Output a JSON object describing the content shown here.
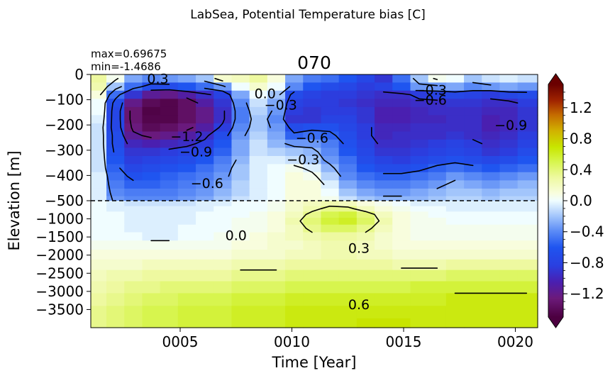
{
  "suptitle": "LabSea, Potential Temperature bias [C]",
  "panel_title": "070",
  "stats": {
    "max_text": "max=0.69675",
    "min_text": "min=-1.4686"
  },
  "chart_data": {
    "type": "heatmap",
    "xlabel": "Time [Year]",
    "ylabel": "Elevation [m]",
    "xlim": [
      1,
      21
    ],
    "x_ticks": [
      5,
      10,
      15,
      20
    ],
    "x_tick_labels": [
      "0005",
      "0010",
      "0015",
      "0020"
    ],
    "y_ticks_upper": [
      0,
      -100,
      -200,
      -300,
      -400,
      -500
    ],
    "y_tick_labels_upper": [
      "0",
      "−100",
      "−200",
      "−300",
      "−400",
      "−500"
    ],
    "y_ticks_lower": [
      -1000,
      -1500,
      -2000,
      -2500,
      -3000,
      -3500
    ],
    "y_tick_labels_lower": [
      "−1000",
      "−1500",
      "−2000",
      "−2500",
      "−3000",
      "−3500"
    ],
    "upper_range_m": [
      0,
      -500
    ],
    "lower_range_m": [
      -500,
      -4000
    ],
    "split_depth_m": -500,
    "colorbar": {
      "vmin": -1.5,
      "vmax": 1.5,
      "ticks": [
        -1.2,
        -0.8,
        -0.4,
        0.0,
        0.4,
        0.8,
        1.2
      ],
      "tick_labels": [
        "−1.2",
        "−0.8",
        "−0.4",
        "0.0",
        "0.4",
        "0.8",
        "1.2"
      ]
    },
    "contour_labels": [
      {
        "text": "0.3",
        "x": 4.0,
        "depth": -15
      },
      {
        "text": "−0.3",
        "x": 16.2,
        "depth": -60
      },
      {
        "text": "−0.6",
        "x": 16.2,
        "depth": -100
      },
      {
        "text": "0.0",
        "x": 8.8,
        "depth": -75
      },
      {
        "text": "−0.3",
        "x": 9.5,
        "depth": -120
      },
      {
        "text": "−1.2",
        "x": 5.3,
        "depth": -245
      },
      {
        "text": "−0.9",
        "x": 5.7,
        "depth": -305
      },
      {
        "text": "−0.6",
        "x": 6.2,
        "depth": -430
      },
      {
        "text": "−0.6",
        "x": 10.9,
        "depth": -250
      },
      {
        "text": "−0.3",
        "x": 10.5,
        "depth": -335
      },
      {
        "text": "−0.9",
        "x": 19.8,
        "depth": -200
      },
      {
        "text": "0.0",
        "x": 7.5,
        "depth": -1450
      },
      {
        "text": "0.3",
        "x": 13.0,
        "depth": -1800
      },
      {
        "text": "0.6",
        "x": 13.0,
        "depth": -3350
      }
    ],
    "grid_columns_years": [
      1.3,
      2.1,
      2.9,
      3.7,
      4.5,
      5.3,
      6.1,
      6.9,
      7.7,
      8.5,
      9.3,
      10.1,
      10.9,
      11.7,
      12.5,
      13.3,
      14.1,
      14.9,
      15.7,
      16.5,
      17.3,
      18.1,
      18.9,
      19.7,
      20.5
    ],
    "grid_upper_depths_m": [
      -16,
      -48,
      -80,
      -113,
      -145,
      -177,
      -210,
      -242,
      -274,
      -307,
      -339,
      -371,
      -403,
      -436,
      -468,
      -496
    ],
    "grid_lower_depths_m": [
      -580,
      -720,
      -880,
      -1060,
      -1260,
      -1480,
      -1720,
      -1980,
      -2260,
      -2560,
      -2880,
      -3220,
      -3580,
      -3910
    ],
    "values_upper": [
      [
        0.3,
        0.05,
        -0.3,
        -0.4,
        -0.35,
        -0.3,
        -0.2,
        0.15,
        0.2,
        0.3,
        0.1,
        -0.3,
        -0.45,
        -0.5,
        -0.6,
        -0.75,
        -0.9,
        -0.5,
        -0.2,
        0.05,
        0.0,
        -0.2,
        -0.1,
        -0.05,
        -0.1
      ],
      [
        0.25,
        -0.2,
        -0.5,
        -0.7,
        -0.7,
        -0.6,
        -0.5,
        -0.35,
        0.0,
        0.15,
        0.0,
        -0.4,
        -0.6,
        -0.7,
        -0.75,
        -0.85,
        -0.8,
        -0.6,
        -0.35,
        -0.35,
        -0.3,
        -0.4,
        -0.35,
        -0.3,
        -0.35
      ],
      [
        0.1,
        -0.5,
        -0.9,
        -1.15,
        -1.2,
        -1.1,
        -0.95,
        -0.8,
        -0.3,
        0.0,
        -0.2,
        -0.7,
        -0.8,
        -0.85,
        -0.85,
        -0.9,
        -0.95,
        -0.95,
        -0.85,
        -0.8,
        -0.75,
        -0.8,
        -0.85,
        -0.75,
        -0.7
      ],
      [
        0.0,
        -0.7,
        -1.2,
        -1.4,
        -1.45,
        -1.35,
        -1.1,
        -0.9,
        -0.4,
        -0.1,
        -0.3,
        -0.8,
        -0.85,
        -0.85,
        -0.9,
        -0.95,
        -1.0,
        -1.0,
        -0.95,
        -0.95,
        -0.9,
        -0.9,
        -0.95,
        -0.95,
        -0.85
      ],
      [
        0.0,
        -0.75,
        -1.3,
        -1.47,
        -1.45,
        -1.35,
        -1.2,
        -0.95,
        -0.45,
        -0.15,
        -0.35,
        -0.85,
        -0.9,
        -0.85,
        -0.85,
        -0.9,
        -1.05,
        -1.05,
        -1.0,
        -0.95,
        -0.95,
        -0.95,
        -1.0,
        -1.0,
        -0.9
      ],
      [
        -0.05,
        -0.75,
        -1.3,
        -1.45,
        -1.45,
        -1.35,
        -1.2,
        -0.95,
        -0.45,
        -0.2,
        -0.4,
        -0.9,
        -0.9,
        -0.8,
        -0.8,
        -0.9,
        -1.05,
        -1.05,
        -1.0,
        -1.0,
        -0.95,
        -0.95,
        -1.05,
        -1.0,
        -0.9
      ],
      [
        -0.1,
        -0.75,
        -1.25,
        -1.4,
        -1.35,
        -1.25,
        -1.1,
        -0.85,
        -0.4,
        -0.2,
        -0.35,
        -0.7,
        -0.65,
        -0.65,
        -0.75,
        -0.85,
        -1.0,
        -1.0,
        -0.95,
        -0.95,
        -0.95,
        -0.95,
        -1.05,
        -1.0,
        -0.9
      ],
      [
        -0.1,
        -0.7,
        -1.15,
        -1.25,
        -1.2,
        -1.1,
        -0.95,
        -0.7,
        -0.35,
        -0.15,
        -0.3,
        -0.55,
        -0.5,
        -0.55,
        -0.7,
        -0.85,
        -1.0,
        -0.95,
        -0.95,
        -0.95,
        -0.9,
        -0.95,
        -1.0,
        -0.95,
        -0.85
      ],
      [
        -0.1,
        -0.7,
        -1.0,
        -1.05,
        -1.0,
        -0.95,
        -0.85,
        -0.6,
        -0.3,
        -0.1,
        -0.25,
        -0.35,
        -0.35,
        -0.45,
        -0.65,
        -0.8,
        -0.95,
        -0.95,
        -0.9,
        -0.85,
        -0.8,
        -0.85,
        -0.95,
        -0.9,
        -0.8
      ],
      [
        -0.1,
        -0.65,
        -0.9,
        -0.9,
        -0.85,
        -0.8,
        -0.75,
        -0.55,
        -0.3,
        -0.1,
        -0.15,
        -0.2,
        -0.25,
        -0.4,
        -0.6,
        -0.75,
        -0.9,
        -0.9,
        -0.85,
        -0.8,
        -0.75,
        -0.8,
        -0.9,
        -0.85,
        -0.7
      ],
      [
        -0.1,
        -0.6,
        -0.85,
        -0.8,
        -0.75,
        -0.7,
        -0.6,
        -0.45,
        -0.25,
        -0.05,
        -0.05,
        -0.1,
        -0.2,
        -0.35,
        -0.5,
        -0.7,
        -0.8,
        -0.85,
        -0.75,
        -0.7,
        -0.65,
        -0.7,
        -0.75,
        -0.7,
        -0.6
      ],
      [
        -0.1,
        -0.55,
        -0.75,
        -0.7,
        -0.65,
        -0.6,
        -0.5,
        -0.4,
        -0.2,
        -0.05,
        0.0,
        0.05,
        -0.05,
        -0.25,
        -0.45,
        -0.6,
        -0.7,
        -0.7,
        -0.65,
        -0.55,
        -0.5,
        -0.55,
        -0.6,
        -0.55,
        -0.5
      ],
      [
        -0.05,
        -0.5,
        -0.65,
        -0.6,
        -0.55,
        -0.5,
        -0.45,
        -0.35,
        -0.2,
        -0.05,
        0.0,
        0.1,
        0.05,
        -0.15,
        -0.4,
        -0.5,
        -0.55,
        -0.55,
        -0.5,
        -0.45,
        -0.35,
        -0.4,
        -0.45,
        -0.4,
        -0.35
      ],
      [
        -0.05,
        -0.45,
        -0.55,
        -0.55,
        -0.5,
        -0.45,
        -0.4,
        -0.3,
        -0.15,
        -0.05,
        0.0,
        0.1,
        0.1,
        -0.05,
        -0.3,
        -0.4,
        -0.45,
        -0.45,
        -0.4,
        -0.35,
        -0.25,
        -0.3,
        -0.35,
        -0.3,
        -0.25
      ],
      [
        -0.05,
        -0.4,
        -0.45,
        -0.45,
        -0.45,
        -0.4,
        -0.35,
        -0.25,
        -0.15,
        -0.05,
        0.0,
        0.1,
        0.1,
        0.0,
        -0.2,
        -0.3,
        -0.35,
        -0.35,
        -0.3,
        -0.25,
        -0.2,
        -0.2,
        -0.25,
        -0.2,
        -0.2
      ],
      [
        -0.05,
        -0.35,
        -0.4,
        -0.4,
        -0.4,
        -0.35,
        -0.3,
        -0.2,
        -0.1,
        -0.05,
        0.0,
        0.1,
        0.1,
        0.05,
        -0.1,
        -0.2,
        -0.25,
        -0.25,
        -0.25,
        -0.2,
        -0.15,
        -0.15,
        -0.2,
        -0.15,
        -0.15
      ]
    ],
    "values_lower": [
      [
        0.0,
        -0.05,
        -0.1,
        -0.1,
        -0.1,
        -0.1,
        -0.05,
        -0.05,
        0.0,
        0.0,
        0.05,
        0.15,
        0.2,
        0.25,
        0.2,
        0.1,
        0.05,
        0.0,
        -0.05,
        -0.05,
        -0.05,
        -0.05,
        -0.05,
        -0.05,
        -0.05
      ],
      [
        0.0,
        -0.05,
        -0.05,
        -0.05,
        -0.05,
        -0.05,
        -0.05,
        0.0,
        0.0,
        0.0,
        0.05,
        0.15,
        0.25,
        0.35,
        0.35,
        0.2,
        0.1,
        0.05,
        0.0,
        0.0,
        -0.05,
        -0.05,
        -0.05,
        -0.05,
        -0.05
      ],
      [
        0.0,
        0.0,
        -0.05,
        -0.05,
        -0.05,
        -0.05,
        0.0,
        0.0,
        0.0,
        0.05,
        0.1,
        0.2,
        0.35,
        0.5,
        0.55,
        0.4,
        0.2,
        0.1,
        0.05,
        0.0,
        0.0,
        0.0,
        0.0,
        0.0,
        0.0
      ],
      [
        0.0,
        0.0,
        -0.05,
        -0.05,
        -0.05,
        -0.05,
        0.0,
        0.0,
        0.05,
        0.05,
        0.1,
        0.25,
        0.4,
        0.55,
        0.6,
        0.45,
        0.25,
        0.1,
        0.05,
        0.05,
        0.0,
        0.0,
        0.0,
        0.0,
        0.0
      ],
      [
        0.0,
        0.0,
        -0.05,
        -0.05,
        -0.05,
        0.0,
        0.0,
        0.0,
        0.05,
        0.05,
        0.1,
        0.2,
        0.35,
        0.45,
        0.45,
        0.35,
        0.2,
        0.1,
        0.05,
        0.05,
        0.05,
        0.05,
        0.05,
        0.05,
        0.05
      ],
      [
        0.0,
        0.0,
        0.0,
        -0.05,
        -0.05,
        0.0,
        0.0,
        0.05,
        0.05,
        0.1,
        0.15,
        0.2,
        0.25,
        0.3,
        0.3,
        0.25,
        0.15,
        0.1,
        0.05,
        0.05,
        0.05,
        0.05,
        0.05,
        0.05,
        0.05
      ],
      [
        0.05,
        0.05,
        0.05,
        0.05,
        0.05,
        0.05,
        0.05,
        0.05,
        0.1,
        0.1,
        0.15,
        0.15,
        0.2,
        0.25,
        0.25,
        0.2,
        0.15,
        0.1,
        0.1,
        0.1,
        0.1,
        0.1,
        0.1,
        0.1,
        0.1
      ],
      [
        0.1,
        0.1,
        0.1,
        0.1,
        0.1,
        0.1,
        0.1,
        0.1,
        0.15,
        0.15,
        0.15,
        0.2,
        0.2,
        0.25,
        0.25,
        0.2,
        0.2,
        0.15,
        0.15,
        0.15,
        0.15,
        0.15,
        0.15,
        0.15,
        0.15
      ],
      [
        0.15,
        0.15,
        0.15,
        0.2,
        0.2,
        0.2,
        0.2,
        0.2,
        0.25,
        0.25,
        0.25,
        0.3,
        0.3,
        0.3,
        0.3,
        0.3,
        0.3,
        0.25,
        0.25,
        0.25,
        0.3,
        0.3,
        0.3,
        0.3,
        0.3
      ],
      [
        0.2,
        0.25,
        0.25,
        0.3,
        0.3,
        0.3,
        0.3,
        0.3,
        0.35,
        0.35,
        0.35,
        0.4,
        0.4,
        0.4,
        0.4,
        0.4,
        0.4,
        0.4,
        0.4,
        0.4,
        0.45,
        0.45,
        0.45,
        0.45,
        0.45
      ],
      [
        0.25,
        0.3,
        0.35,
        0.35,
        0.4,
        0.4,
        0.4,
        0.4,
        0.45,
        0.45,
        0.45,
        0.5,
        0.5,
        0.5,
        0.5,
        0.5,
        0.5,
        0.5,
        0.55,
        0.55,
        0.55,
        0.55,
        0.55,
        0.55,
        0.55
      ],
      [
        0.3,
        0.35,
        0.4,
        0.45,
        0.45,
        0.5,
        0.5,
        0.5,
        0.55,
        0.55,
        0.55,
        0.6,
        0.6,
        0.6,
        0.6,
        0.6,
        0.6,
        0.6,
        0.6,
        0.6,
        0.65,
        0.65,
        0.65,
        0.65,
        0.65
      ],
      [
        0.35,
        0.4,
        0.45,
        0.5,
        0.5,
        0.55,
        0.55,
        0.55,
        0.6,
        0.6,
        0.6,
        0.65,
        0.65,
        0.65,
        0.65,
        0.65,
        0.65,
        0.65,
        0.65,
        0.65,
        0.65,
        0.65,
        0.65,
        0.65,
        0.65
      ],
      [
        0.35,
        0.4,
        0.45,
        0.5,
        0.5,
        0.55,
        0.55,
        0.55,
        0.6,
        0.6,
        0.6,
        0.65,
        0.65,
        0.65,
        0.65,
        0.7,
        0.7,
        0.7,
        0.65,
        0.65,
        0.65,
        0.65,
        0.65,
        0.65,
        0.65
      ]
    ]
  },
  "colors": {
    "line": "#000000",
    "background": "#ffffff",
    "scale": [
      [
        0.0,
        "#4c0040"
      ],
      [
        0.08,
        "#6c1a7a"
      ],
      [
        0.15,
        "#4a1fb0"
      ],
      [
        0.22,
        "#2a3fe0"
      ],
      [
        0.3,
        "#1f55f0"
      ],
      [
        0.37,
        "#5c8cf6"
      ],
      [
        0.43,
        "#9ec2fb"
      ],
      [
        0.5,
        "#f0fdff"
      ],
      [
        0.53,
        "#f8fde0"
      ],
      [
        0.6,
        "#eef9a0"
      ],
      [
        0.67,
        "#d6f54a"
      ],
      [
        0.73,
        "#c8e600"
      ],
      [
        0.8,
        "#d1b200"
      ],
      [
        0.87,
        "#c46a00"
      ],
      [
        0.93,
        "#a02400"
      ],
      [
        1.0,
        "#6a0000"
      ]
    ]
  }
}
